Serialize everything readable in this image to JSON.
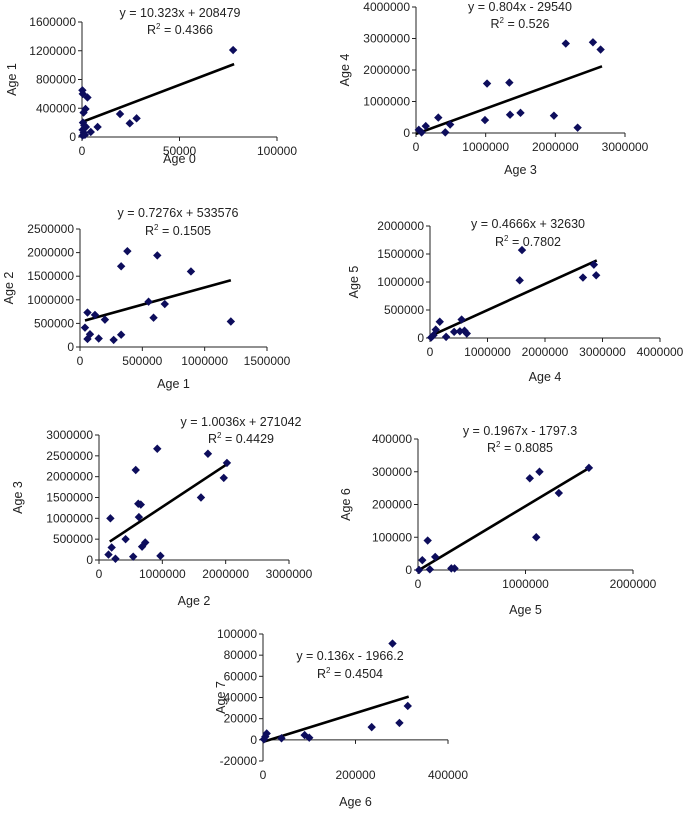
{
  "chart_data": [
    {
      "type": "scatter",
      "xlabel": "Age 0",
      "ylabel": "Age 1",
      "xlim": [
        0,
        100000
      ],
      "ylim": [
        0,
        1600000
      ],
      "xticks": [
        "0",
        "50000",
        "100000"
      ],
      "yticks": [
        "0",
        "400000",
        "800000",
        "1200000",
        "1600000"
      ],
      "equation": "y = 10.323x + 208479",
      "r2_label": "R",
      "r2_value": " = 0.4366",
      "trend": {
        "slope": 10.323,
        "intercept": 208479,
        "x_range": [
          0,
          78000
        ]
      },
      "points": [
        [
          200,
          650000
        ],
        [
          400,
          600000
        ],
        [
          2800,
          550000
        ],
        [
          1800,
          390000
        ],
        [
          800,
          340000
        ],
        [
          500,
          200000
        ],
        [
          1200,
          160000
        ],
        [
          2000,
          140000
        ],
        [
          300,
          100000
        ],
        [
          900,
          60000
        ],
        [
          300,
          20000
        ],
        [
          1500,
          30000
        ],
        [
          4500,
          70000
        ],
        [
          8000,
          140000
        ],
        [
          19500,
          320000
        ],
        [
          24500,
          190000
        ],
        [
          28000,
          260000
        ],
        [
          77500,
          1210000
        ]
      ]
    },
    {
      "type": "scatter",
      "xlabel": "Age 3",
      "ylabel": "Age 4",
      "xlim": [
        0,
        3000000
      ],
      "ylim": [
        0,
        4000000
      ],
      "xticks": [
        "0",
        "1000000",
        "2000000",
        "3000000"
      ],
      "yticks": [
        "0",
        "1000000",
        "2000000",
        "3000000",
        "4000000"
      ],
      "equation": "y = 0.804x - 29540",
      "r2_label": "R",
      "r2_value": " = 0.526",
      "trend": {
        "slope": 0.804,
        "intercept": -29540,
        "x_range": [
          0,
          2670000
        ]
      },
      "points": [
        [
          40000,
          100000
        ],
        [
          80000,
          20000
        ],
        [
          140000,
          220000
        ],
        [
          320000,
          490000
        ],
        [
          420000,
          20000
        ],
        [
          490000,
          270000
        ],
        [
          990000,
          410000
        ],
        [
          1020000,
          1570000
        ],
        [
          1340000,
          1600000
        ],
        [
          1350000,
          580000
        ],
        [
          1500000,
          640000
        ],
        [
          1980000,
          550000
        ],
        [
          2150000,
          2840000
        ],
        [
          2320000,
          170000
        ],
        [
          2540000,
          2880000
        ],
        [
          2650000,
          2650000
        ]
      ]
    },
    {
      "type": "scatter",
      "xlabel": "Age 1",
      "ylabel": "Age 2",
      "xlim": [
        0,
        1500000
      ],
      "ylim": [
        0,
        2500000
      ],
      "xticks": [
        "0",
        "500000",
        "1000000",
        "1500000"
      ],
      "yticks": [
        "0",
        "500000",
        "1000000",
        "1500000",
        "2000000",
        "2500000"
      ],
      "equation": "y = 0.7276x + 533576",
      "r2_label": "R",
      "r2_value": " = 0.1505",
      "trend": {
        "slope": 0.7276,
        "intercept": 533576,
        "x_range": [
          40000,
          1210000
        ]
      },
      "points": [
        [
          40000,
          410000
        ],
        [
          60000,
          730000
        ],
        [
          60000,
          170000
        ],
        [
          80000,
          270000
        ],
        [
          120000,
          680000
        ],
        [
          150000,
          180000
        ],
        [
          200000,
          580000
        ],
        [
          270000,
          150000
        ],
        [
          330000,
          1710000
        ],
        [
          330000,
          260000
        ],
        [
          380000,
          2030000
        ],
        [
          550000,
          960000
        ],
        [
          590000,
          620000
        ],
        [
          620000,
          1940000
        ],
        [
          680000,
          910000
        ],
        [
          890000,
          1600000
        ],
        [
          1210000,
          540000
        ]
      ]
    },
    {
      "type": "scatter",
      "xlabel": "Age 4",
      "ylabel": "Age 5",
      "xlim": [
        0,
        4000000
      ],
      "ylim": [
        0,
        2000000
      ],
      "xticks": [
        "0",
        "1000000",
        "2000000",
        "3000000",
        "4000000"
      ],
      "yticks": [
        "0",
        "500000",
        "1000000",
        "1500000",
        "2000000"
      ],
      "equation": "y = 0.4666x + 32630",
      "r2_label": "R",
      "r2_value": " = 0.7802",
      "trend": {
        "slope": 0.4666,
        "intercept": 32630,
        "x_range": [
          0,
          2900000
        ]
      },
      "points": [
        [
          20000,
          10000
        ],
        [
          60000,
          50000
        ],
        [
          100000,
          150000
        ],
        [
          170000,
          290000
        ],
        [
          280000,
          20000
        ],
        [
          420000,
          110000
        ],
        [
          520000,
          120000
        ],
        [
          550000,
          330000
        ],
        [
          600000,
          130000
        ],
        [
          640000,
          80000
        ],
        [
          1560000,
          1030000
        ],
        [
          1600000,
          1570000
        ],
        [
          2660000,
          1080000
        ],
        [
          2850000,
          1310000
        ],
        [
          2890000,
          1120000
        ]
      ]
    },
    {
      "type": "scatter",
      "xlabel": "Age 2",
      "ylabel": "Age 3",
      "xlim": [
        0,
        3000000
      ],
      "ylim": [
        0,
        3000000
      ],
      "xticks": [
        "0",
        "1000000",
        "2000000",
        "3000000"
      ],
      "yticks": [
        "0",
        "500000",
        "1000000",
        "1500000",
        "2000000",
        "2500000",
        "3000000"
      ],
      "equation": "y = 1.0036x + 271042",
      "r2_label": "R",
      "r2_value": " = 0.4429",
      "trend": {
        "slope": 1.0036,
        "intercept": 271042,
        "x_range": [
          170000,
          2030000
        ]
      },
      "points": [
        [
          150000,
          130000
        ],
        [
          180000,
          1000000
        ],
        [
          200000,
          300000
        ],
        [
          260000,
          30000
        ],
        [
          420000,
          500000
        ],
        [
          540000,
          80000
        ],
        [
          580000,
          2160000
        ],
        [
          620000,
          1350000
        ],
        [
          630000,
          1030000
        ],
        [
          660000,
          1330000
        ],
        [
          680000,
          320000
        ],
        [
          730000,
          420000
        ],
        [
          920000,
          2670000
        ],
        [
          970000,
          100000
        ],
        [
          1610000,
          1500000
        ],
        [
          1720000,
          2550000
        ],
        [
          1970000,
          1970000
        ],
        [
          2020000,
          2330000
        ]
      ]
    },
    {
      "type": "scatter",
      "xlabel": "Age 5",
      "ylabel": "Age 6",
      "xlim": [
        0,
        2000000
      ],
      "ylim": [
        0,
        400000
      ],
      "xticks": [
        "0",
        "1000000",
        "2000000"
      ],
      "yticks": [
        "0",
        "100000",
        "200000",
        "300000",
        "400000"
      ],
      "equation": "y = 0.1967x - 1797.3",
      "r2_label": "R",
      "r2_value": " = 0.8085",
      "trend": {
        "slope": 0.1967,
        "intercept": -1797.3,
        "x_range": [
          0,
          1590000
        ]
      },
      "points": [
        [
          10000,
          0
        ],
        [
          40000,
          30000
        ],
        [
          90000,
          90000
        ],
        [
          110000,
          2000
        ],
        [
          160000,
          40000
        ],
        [
          310000,
          5000
        ],
        [
          340000,
          5000
        ],
        [
          1040000,
          280000
        ],
        [
          1100000,
          100000
        ],
        [
          1130000,
          300000
        ],
        [
          1310000,
          235000
        ],
        [
          1590000,
          312000
        ]
      ]
    },
    {
      "type": "scatter",
      "xlabel": "Age 6",
      "ylabel": "Age 7",
      "xlim": [
        0,
        400000
      ],
      "ylim": [
        -20000,
        100000
      ],
      "xticks": [
        "0",
        "200000",
        "400000"
      ],
      "yticks": [
        "-20000",
        "0",
        "20000",
        "40000",
        "60000",
        "80000",
        "100000"
      ],
      "equation": "y = 0.136x - 1966.2",
      "r2_label": "R",
      "r2_value": " = 0.4504",
      "trend": {
        "slope": 0.136,
        "intercept": -1966.2,
        "x_range": [
          0,
          315000
        ]
      },
      "points": [
        [
          2000,
          500
        ],
        [
          5000,
          3000
        ],
        [
          8000,
          6000
        ],
        [
          40000,
          1500
        ],
        [
          90000,
          4500
        ],
        [
          100000,
          2000
        ],
        [
          235000,
          12000
        ],
        [
          295000,
          16000
        ],
        [
          280000,
          91000
        ],
        [
          313000,
          32000
        ]
      ]
    }
  ]
}
